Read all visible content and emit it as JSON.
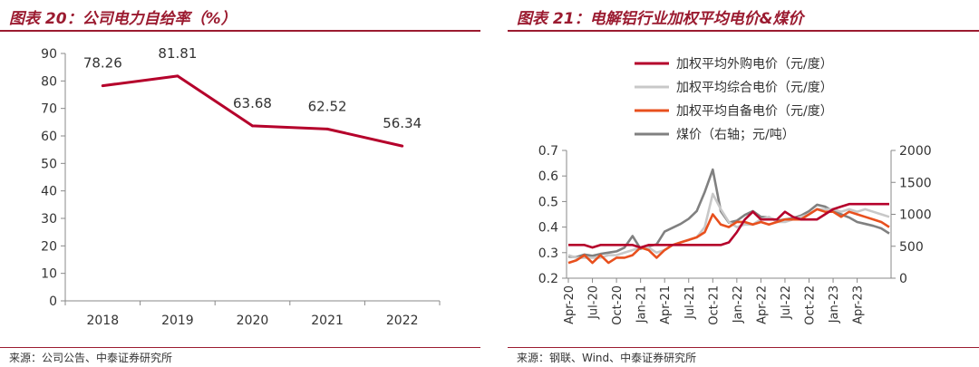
{
  "left": {
    "title": "图表 20：公司电力自给率（%）",
    "source": "来源：公司公告、中泰证券研究所"
  },
  "right": {
    "title": "图表 21：电解铝行业加权平均电价&煤价",
    "source": "来源：钢联、Wind、中泰证券研究所"
  },
  "colors": {
    "accent": "#9b1b30",
    "axis": "#888888"
  },
  "chart_data": [
    {
      "type": "line",
      "title": "图表 20：公司电力自给率（%）",
      "categories": [
        "2018",
        "2019",
        "2020",
        "2021",
        "2022"
      ],
      "values": [
        78.26,
        81.81,
        63.68,
        62.52,
        56.34
      ],
      "data_labels": [
        "78.26",
        "81.81",
        "63.68",
        "62.52",
        "56.34"
      ],
      "yticks": [
        "0",
        "10",
        "20",
        "30",
        "40",
        "50",
        "60",
        "70",
        "80",
        "90"
      ],
      "ylim": [
        0,
        90
      ],
      "color": "#b5002b",
      "grid": false
    },
    {
      "type": "line",
      "title": "图表 21：电解铝行业加权平均电价&煤价",
      "xticks": [
        "Apr-20",
        "Jul-20",
        "Oct-20",
        "Jan-21",
        "Apr-21",
        "Jul-21",
        "Oct-21",
        "Jan-22",
        "Apr-22",
        "Jul-22",
        "Oct-22",
        "Jan-23",
        "Apr-23"
      ],
      "x_start": "2020-04",
      "x_step": "month",
      "ylim_left": [
        0.2,
        0.7
      ],
      "yticks_left": [
        "0.2",
        "0.3",
        "0.4",
        "0.5",
        "0.6",
        "0.7"
      ],
      "ylim_right": [
        0,
        2000
      ],
      "yticks_right": [
        "0",
        "500",
        "1000",
        "1500",
        "2000"
      ],
      "legend_position": "top",
      "grid": false,
      "series": [
        {
          "name": "加权平均外购电价（元/度）",
          "axis": "left",
          "color": "#b5002b",
          "values": [
            0.33,
            0.33,
            0.33,
            0.32,
            0.33,
            0.33,
            0.33,
            0.33,
            0.33,
            0.32,
            0.33,
            0.33,
            0.33,
            0.33,
            0.33,
            0.33,
            0.33,
            0.33,
            0.33,
            0.33,
            0.34,
            0.38,
            0.43,
            0.46,
            0.43,
            0.43,
            0.43,
            0.46,
            0.44,
            0.43,
            0.43,
            0.43,
            0.45,
            0.47,
            0.48,
            0.49,
            0.49,
            0.49,
            0.49,
            0.49,
            0.49
          ]
        },
        {
          "name": "加权平均综合电价（元/度）",
          "axis": "left",
          "color": "#c8c8c8",
          "values": [
            0.29,
            0.28,
            0.28,
            0.28,
            0.28,
            0.29,
            0.29,
            0.3,
            0.31,
            0.32,
            0.32,
            0.3,
            0.31,
            0.33,
            0.34,
            0.35,
            0.36,
            0.4,
            0.53,
            0.47,
            0.42,
            0.4,
            0.41,
            0.41,
            0.43,
            0.44,
            0.42,
            0.42,
            0.43,
            0.44,
            0.45,
            0.47,
            0.47,
            0.47,
            0.46,
            0.47,
            0.46,
            0.47,
            0.46,
            0.45,
            0.44
          ]
        },
        {
          "name": "加权平均自备电价（元/度）",
          "axis": "left",
          "color": "#e8501e",
          "values": [
            0.26,
            0.27,
            0.29,
            0.26,
            0.29,
            0.26,
            0.28,
            0.28,
            0.29,
            0.32,
            0.31,
            0.28,
            0.31,
            0.33,
            0.34,
            0.35,
            0.36,
            0.38,
            0.45,
            0.41,
            0.4,
            0.42,
            0.42,
            0.41,
            0.42,
            0.41,
            0.42,
            0.43,
            0.43,
            0.43,
            0.45,
            0.47,
            0.46,
            0.46,
            0.44,
            0.46,
            0.45,
            0.44,
            0.43,
            0.42,
            0.4
          ]
        },
        {
          "name": "煤价（右轴；元/吨）",
          "axis": "right",
          "color": "#808080",
          "values": [
            340,
            330,
            370,
            350,
            380,
            400,
            420,
            480,
            660,
            460,
            500,
            530,
            730,
            790,
            850,
            930,
            1050,
            1350,
            1700,
            1050,
            870,
            900,
            990,
            1050,
            960,
            950,
            900,
            920,
            940,
            980,
            1050,
            1150,
            1120,
            1050,
            1000,
            950,
            880,
            850,
            820,
            780,
            700
          ]
        }
      ]
    }
  ]
}
